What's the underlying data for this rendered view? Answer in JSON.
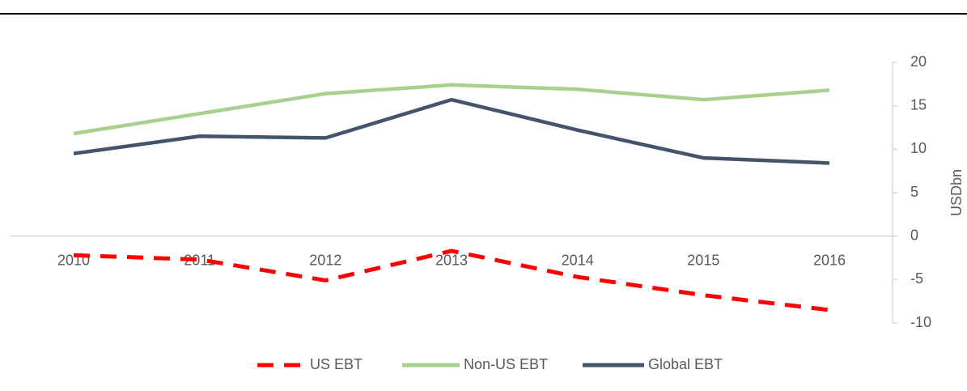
{
  "chart_data": {
    "type": "line",
    "categories": [
      "2010",
      "2011",
      "2012",
      "2013",
      "2014",
      "2015",
      "2016"
    ],
    "series": [
      {
        "name": "US EBT",
        "color": "#ff0000",
        "style": "dashed",
        "values": [
          -2.2,
          -2.7,
          -5.1,
          -1.7,
          -4.7,
          -6.8,
          -8.5
        ]
      },
      {
        "name": "Non-US EBT",
        "color": "#a9d18e",
        "style": "solid",
        "values": [
          11.8,
          14.1,
          16.4,
          17.4,
          16.9,
          15.7,
          16.8
        ]
      },
      {
        "name": "Global EBT",
        "color": "#44546a",
        "style": "solid",
        "values": [
          9.5,
          11.5,
          11.3,
          15.7,
          12.2,
          9.0,
          8.4
        ]
      }
    ],
    "y_label": "USDbn",
    "ylim": [
      -10,
      20
    ],
    "yticks": [
      -10,
      -5,
      0,
      5,
      10,
      15,
      20
    ],
    "y_axis_side": "right",
    "grid": false,
    "legend": "bottom"
  }
}
